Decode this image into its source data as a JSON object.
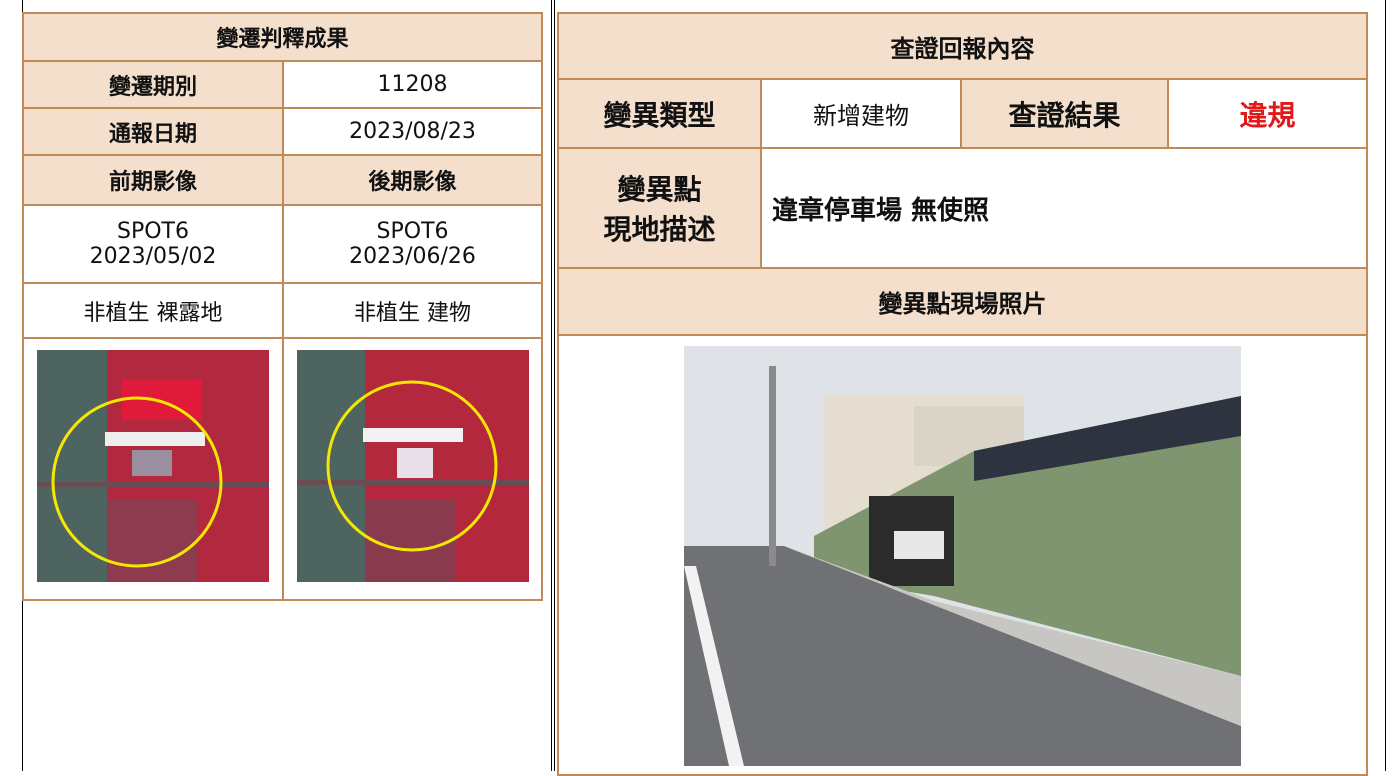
{
  "left": {
    "title": "變遷判釋成果",
    "rows": [
      [
        "變遷期別",
        "11208"
      ],
      [
        "通報日期",
        "2023/08/23"
      ],
      [
        "前期影像",
        "後期影像"
      ]
    ],
    "before": {
      "sensor": "SPOT6",
      "date": "2023/05/02",
      "class": "非植生 裸露地"
    },
    "after": {
      "sensor": "SPOT6",
      "date": "2023/06/26",
      "class": "非植生 建物"
    }
  },
  "right": {
    "title": "查證回報內容",
    "change_type_label": "變異類型",
    "change_type": "新增建物",
    "result_label": "查證結果",
    "result": "違規",
    "desc_label": [
      "變異點",
      "現地描述"
    ],
    "desc": "違章停車場 無使照",
    "photo_title": "變異點現場照片"
  }
}
